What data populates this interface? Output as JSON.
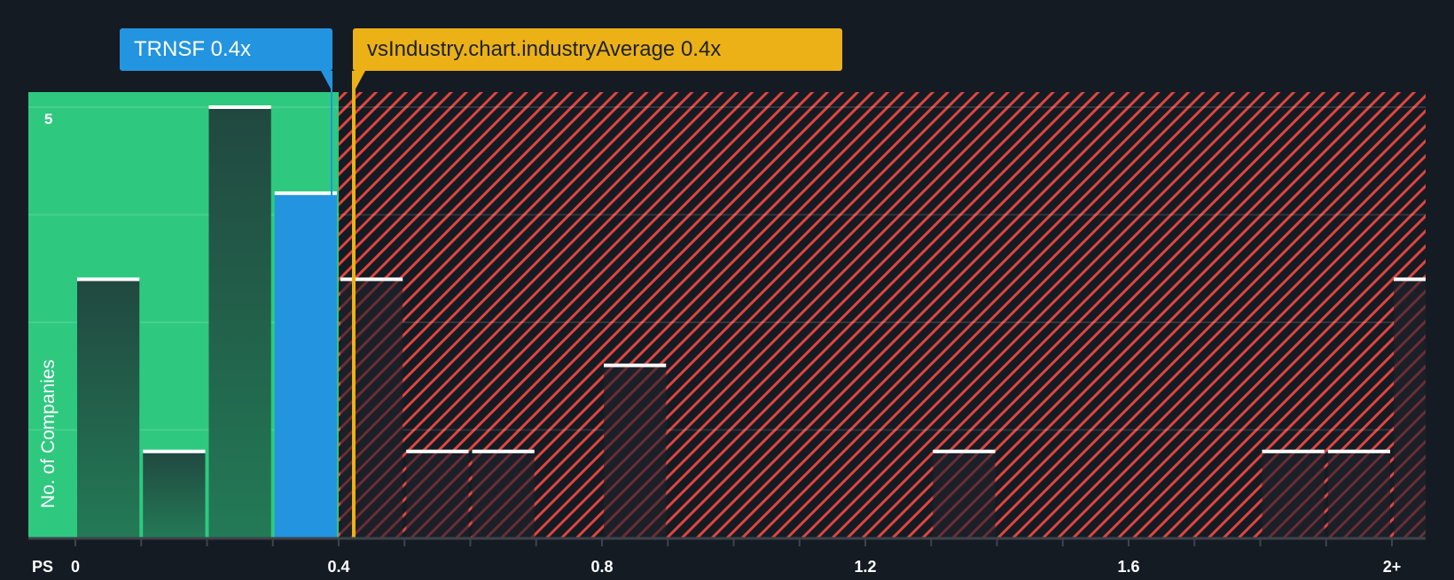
{
  "chart_data": {
    "type": "bar",
    "title": "",
    "xlabel": "PS",
    "ylabel": "No. of Companies",
    "ylim": [
      0,
      5
    ],
    "x_ticks": [
      "0",
      "0.4",
      "0.8",
      "1.2",
      "1.6",
      "2+"
    ],
    "y_ticks": [
      "5"
    ],
    "bin_width": 0.1,
    "categories": [
      "0-0.1",
      "0.1-0.2",
      "0.2-0.3",
      "0.3-0.4",
      "0.4-0.5",
      "0.5-0.6",
      "0.6-0.7",
      "0.7-0.8",
      "0.8-0.9",
      "0.9-1.0",
      "1.0-1.1",
      "1.1-1.2",
      "1.2-1.3",
      "1.3-1.4",
      "1.4-1.5",
      "1.5-1.6",
      "1.6-1.7",
      "1.7-1.8",
      "1.8-1.9",
      "1.9-2.0",
      "2+"
    ],
    "values": [
      3,
      1,
      5,
      4,
      3,
      1,
      1,
      0,
      2,
      0,
      0,
      0,
      0,
      1,
      0,
      0,
      0,
      0,
      1,
      1,
      3
    ],
    "highlight_bin": "0.3-0.4",
    "company": {
      "ticker": "TRNSF",
      "value": 0.4,
      "label": "TRNSF 0.4x"
    },
    "industry_average": {
      "value": 0.4,
      "label": "vsIndustry.chart.industryAverage 0.4x"
    },
    "regions": {
      "undervalued_until": 0.4,
      "overvalued_from": 0.4
    },
    "grid": true,
    "legend": "none"
  },
  "labels": {
    "company": "TRNSF 0.4x",
    "industry": "vsIndustry.chart.industryAverage 0.4x",
    "ylabel": "No. of Companies",
    "xlabel": "PS",
    "ytick_top": "5",
    "xticks": [
      "0",
      "0.4",
      "0.8",
      "1.2",
      "1.6",
      "2+"
    ]
  },
  "colors": {
    "background": "#151b23",
    "good_region": "#2ec97f",
    "bad_hatch": "#e0453f",
    "company": "#2394e0",
    "industry": "#ecb117",
    "bar_dark": "#214b40",
    "bar_cap": "#ffffff"
  }
}
